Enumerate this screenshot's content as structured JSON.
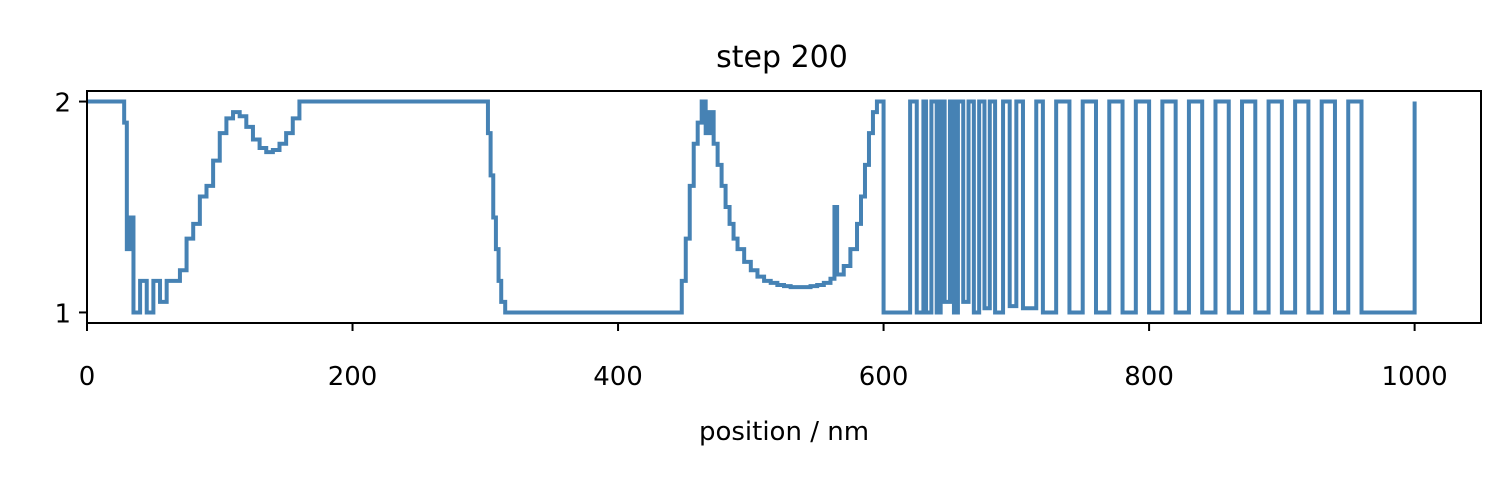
{
  "chart_data": {
    "type": "line",
    "title": "step 200",
    "xlabel": "position / nm",
    "ylabel": "",
    "xlim": [
      0,
      1050
    ],
    "ylim": [
      0.95,
      2.05
    ],
    "xticks": [
      0,
      200,
      400,
      600,
      800,
      1000
    ],
    "xtick_labels": [
      "0",
      "200",
      "400",
      "600",
      "800",
      "1000"
    ],
    "yticks": [
      1,
      2
    ],
    "ytick_labels": [
      "1",
      "2"
    ],
    "grid": false,
    "legend": "none",
    "line_color": "#4682b4",
    "series": [
      {
        "x": [
          0,
          25,
          28,
          30,
          32,
          35,
          40,
          45,
          50,
          55,
          60,
          65,
          70,
          75,
          80,
          85,
          90,
          95,
          100,
          105,
          110,
          115,
          120,
          125,
          130,
          135,
          140,
          145,
          150,
          155,
          160,
          200,
          250,
          300,
          302,
          304,
          306,
          308,
          310,
          312,
          315,
          330,
          350,
          400,
          445,
          448,
          451,
          454,
          457,
          460,
          463,
          466,
          469,
          472,
          475,
          478,
          481,
          484,
          487,
          490,
          495,
          500,
          505,
          510,
          515,
          520,
          525,
          530,
          535,
          540,
          545,
          550,
          555,
          560,
          563,
          565,
          570,
          575,
          580,
          583,
          586,
          589,
          592,
          595,
          597,
          600,
          620,
          625,
          630,
          632,
          636,
          640,
          643,
          646,
          650,
          653,
          656,
          660,
          664,
          668,
          672,
          676,
          680,
          684,
          690,
          695,
          700,
          705,
          710,
          715,
          720,
          730,
          740,
          750,
          760,
          770,
          780,
          790,
          800,
          810,
          820,
          830,
          840,
          850,
          860,
          870,
          880,
          890,
          900,
          910,
          920,
          930,
          940,
          950,
          960,
          990,
          1000
        ],
        "y": [
          2.0,
          2.0,
          1.9,
          1.3,
          1.45,
          1.0,
          1.15,
          1.0,
          1.15,
          1.05,
          1.15,
          1.15,
          1.2,
          1.35,
          1.42,
          1.55,
          1.6,
          1.72,
          1.85,
          1.92,
          1.95,
          1.93,
          1.88,
          1.82,
          1.78,
          1.76,
          1.77,
          1.8,
          1.85,
          1.92,
          2.0,
          2.0,
          2.0,
          2.0,
          1.85,
          1.65,
          1.45,
          1.3,
          1.15,
          1.05,
          1.0,
          1.0,
          1.0,
          1.0,
          1.0,
          1.15,
          1.35,
          1.6,
          1.8,
          1.9,
          2.0,
          1.85,
          1.95,
          1.8,
          1.7,
          1.6,
          1.5,
          1.42,
          1.35,
          1.3,
          1.24,
          1.2,
          1.17,
          1.15,
          1.14,
          1.13,
          1.125,
          1.12,
          1.12,
          1.12,
          1.125,
          1.13,
          1.14,
          1.16,
          1.5,
          1.18,
          1.22,
          1.3,
          1.42,
          1.55,
          1.7,
          1.85,
          1.95,
          2.0,
          2.0,
          1.0,
          2.0,
          1.0,
          2.0,
          1.0,
          2.0,
          1.0,
          2.0,
          1.05,
          2.0,
          1.0,
          2.0,
          1.05,
          2.0,
          1.0,
          2.0,
          1.02,
          2.0,
          1.0,
          2.0,
          1.03,
          2.0,
          1.02,
          1.02,
          2.0,
          1.0,
          2.0,
          1.0,
          2.0,
          1.0,
          2.0,
          1.0,
          2.0,
          1.0,
          2.0,
          1.0,
          2.0,
          1.0,
          2.0,
          1.0,
          2.0,
          1.0,
          2.0,
          1.0,
          2.0,
          1.0,
          2.0,
          1.0,
          2.0,
          1.0,
          1.0,
          2.0
        ]
      }
    ]
  }
}
